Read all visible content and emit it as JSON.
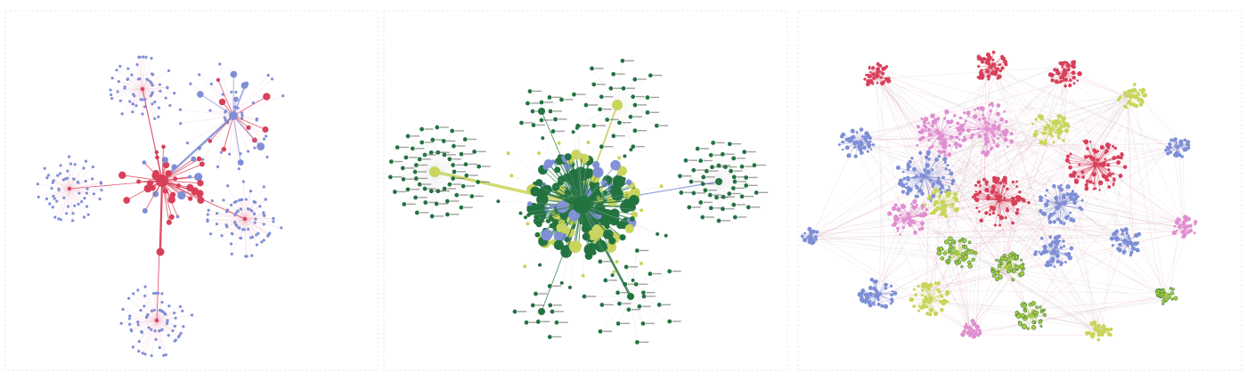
{
  "colors": {
    "red": "#d8405a",
    "periwinkle": "#7f8fd6",
    "pink_edge": "#e06a8f",
    "dark_green": "#237341",
    "yellow_green": "#c9d55b",
    "hot_pink": "#e08fd0",
    "lime": "#a9c840",
    "label_gray": "#555555"
  },
  "panels": [
    {
      "id": "graph-red-blue",
      "palette": [
        "red",
        "periwinkle"
      ]
    },
    {
      "id": "graph-green-labeled",
      "palette": [
        "dark_green",
        "yellow_green",
        "periwinkle"
      ]
    },
    {
      "id": "graph-multicluster",
      "palette": [
        "periwinkle",
        "red",
        "hot_pink",
        "yellow_green",
        "lime"
      ]
    }
  ]
}
